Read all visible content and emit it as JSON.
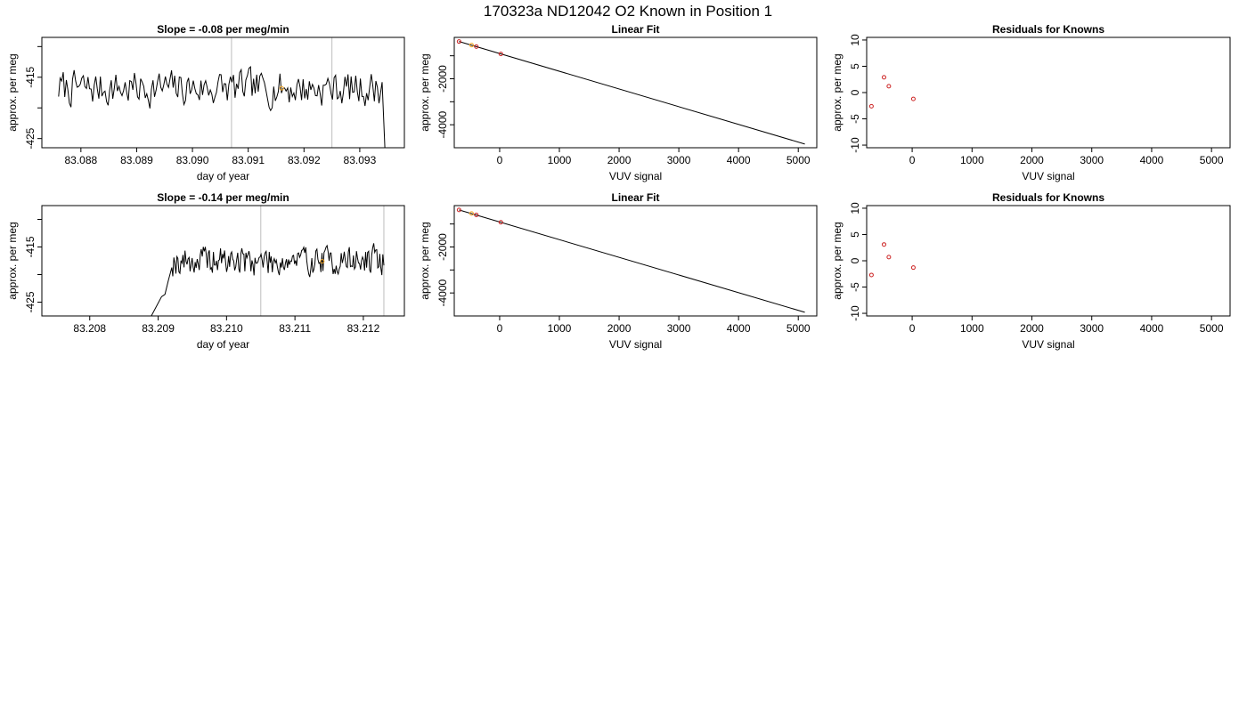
{
  "figure_title": "170323a     ND12042   O2 Known in Position  1",
  "chart_data": [
    {
      "type": "line",
      "title": "Slope =  -0.08  per meg/min",
      "xlabel": "day of year",
      "ylabel": "approx. per meg",
      "xlim": [
        83.0873,
        83.0938
      ],
      "ylim": [
        -426.5,
        -408.5
      ],
      "xticks": [
        "83.088",
        "83.089",
        "83.090",
        "83.091",
        "83.092",
        "83.093"
      ],
      "xtick_values": [
        83.088,
        83.089,
        83.09,
        83.091,
        83.092,
        83.093
      ],
      "yticks": [
        "-415",
        "-425"
      ],
      "ytick_values": [
        -415,
        -425
      ],
      "extra_ytick_values": [
        -410,
        -420
      ],
      "vlines": [
        83.0907,
        83.0925
      ],
      "trace": {
        "x_start": 83.0876,
        "x_end": 83.0934,
        "mean": -416.8,
        "amplitude": 2.6,
        "seed": 7,
        "lead_in": null,
        "tail": {
          "x": 83.09345,
          "y": -426.5
        }
      },
      "highlight_points": [
        {
          "x": 83.0916,
          "y": -416.8,
          "color": "#f5a623"
        }
      ]
    },
    {
      "type": "scatter",
      "title": "Linear Fit",
      "xlabel": "VUV signal",
      "ylabel": "approx. per meg",
      "xlim": [
        -760,
        5310
      ],
      "ylim": [
        -5000,
        -200
      ],
      "xticks": [
        "0",
        "1000",
        "2000",
        "3000",
        "4000",
        "5000"
      ],
      "xtick_values": [
        0,
        1000,
        2000,
        3000,
        4000,
        5000
      ],
      "yticks": [
        "-2000",
        "-4000"
      ],
      "ytick_values": [
        -2000,
        -4000
      ],
      "extra_ytick_values": [
        -1000,
        -3000
      ],
      "fit_line": {
        "x": [
          -680,
          5110
        ],
        "y": [
          -380,
          -4840
        ]
      },
      "points": [
        {
          "x": -680,
          "y": -381,
          "color": "#cc2222"
        },
        {
          "x": -470,
          "y": -536,
          "color": "#f5a623"
        },
        {
          "x": -390,
          "y": -603,
          "color": "#cc2222"
        },
        {
          "x": 20,
          "y": -920,
          "color": "#cc2222"
        }
      ]
    },
    {
      "type": "scatter",
      "title": "Residuals for Knowns",
      "xlabel": "VUV signal",
      "ylabel": "approx. per meg",
      "xlim": [
        -760,
        5310
      ],
      "ylim": [
        -10.5,
        10.5
      ],
      "xticks": [
        "0",
        "1000",
        "2000",
        "3000",
        "4000",
        "5000"
      ],
      "xtick_values": [
        0,
        1000,
        2000,
        3000,
        4000,
        5000
      ],
      "yticks": [
        "10",
        "5",
        "0",
        "-5",
        "-10"
      ],
      "ytick_values": [
        10,
        5,
        0,
        -5,
        -10
      ],
      "points": [
        {
          "x": -680,
          "y": -2.6,
          "color": "#cc2222"
        },
        {
          "x": -470,
          "y": 2.9,
          "color": "#cc2222"
        },
        {
          "x": -390,
          "y": 1.2,
          "color": "#cc2222"
        },
        {
          "x": 20,
          "y": -1.2,
          "color": "#cc2222"
        }
      ]
    },
    {
      "type": "line",
      "title": "Slope =  -0.14  per meg/min",
      "xlabel": "day of year",
      "ylabel": "approx. per meg",
      "xlim": [
        83.2073,
        83.2126
      ],
      "ylim": [
        -427.5,
        -407.5
      ],
      "xticks": [
        "83.208",
        "83.209",
        "83.210",
        "83.211",
        "83.212"
      ],
      "xtick_values": [
        83.208,
        83.209,
        83.21,
        83.211,
        83.212
      ],
      "yticks": [
        "-415",
        "-425"
      ],
      "ytick_values": [
        -415,
        -425
      ],
      "extra_ytick_values": [
        -410,
        -420
      ],
      "vlines": [
        83.2105,
        83.2123
      ],
      "trace": {
        "x_start": 83.2092,
        "x_end": 83.2123,
        "mean": -417.5,
        "amplitude": 2.4,
        "seed": 19,
        "lead_in": {
          "x": [
            83.2089,
            83.20905,
            83.2091,
            83.20915
          ],
          "y": [
            -427.5,
            -424,
            -423.6,
            -421
          ]
        },
        "tail": null
      },
      "highlight_points": [
        {
          "x": 83.2114,
          "y": -417.6,
          "color": "#f5a623"
        }
      ]
    },
    {
      "type": "scatter",
      "title": "Linear Fit",
      "xlabel": "VUV signal",
      "ylabel": "approx. per meg",
      "xlim": [
        -760,
        5310
      ],
      "ylim": [
        -5000,
        -200
      ],
      "xticks": [
        "0",
        "1000",
        "2000",
        "3000",
        "4000",
        "5000"
      ],
      "xtick_values": [
        0,
        1000,
        2000,
        3000,
        4000,
        5000
      ],
      "yticks": [
        "-2000",
        "-4000"
      ],
      "ytick_values": [
        -2000,
        -4000
      ],
      "extra_ytick_values": [
        -1000,
        -3000
      ],
      "fit_line": {
        "x": [
          -680,
          5110
        ],
        "y": [
          -390,
          -4840
        ]
      },
      "points": [
        {
          "x": -680,
          "y": -389,
          "color": "#cc2222"
        },
        {
          "x": -470,
          "y": -542,
          "color": "#f5a623"
        },
        {
          "x": -390,
          "y": -605,
          "color": "#cc2222"
        },
        {
          "x": 20,
          "y": -925,
          "color": "#cc2222"
        }
      ]
    },
    {
      "type": "scatter",
      "title": "Residuals for Knowns",
      "xlabel": "VUV signal",
      "ylabel": "approx. per meg",
      "xlim": [
        -760,
        5310
      ],
      "ylim": [
        -10.5,
        10.5
      ],
      "xticks": [
        "0",
        "1000",
        "2000",
        "3000",
        "4000",
        "5000"
      ],
      "xtick_values": [
        0,
        1000,
        2000,
        3000,
        4000,
        5000
      ],
      "yticks": [
        "10",
        "5",
        "0",
        "-5",
        "-10"
      ],
      "ytick_values": [
        10,
        5,
        0,
        -5,
        -10
      ],
      "points": [
        {
          "x": -680,
          "y": -2.7,
          "color": "#cc2222"
        },
        {
          "x": -470,
          "y": 3.1,
          "color": "#cc2222"
        },
        {
          "x": -390,
          "y": 0.7,
          "color": "#cc2222"
        },
        {
          "x": 20,
          "y": -1.3,
          "color": "#cc2222"
        }
      ]
    }
  ]
}
